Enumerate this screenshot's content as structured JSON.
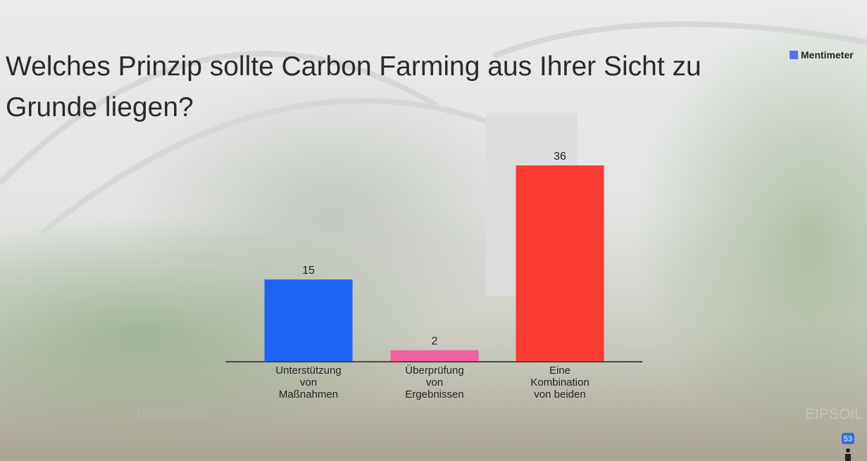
{
  "chart_data": {
    "type": "bar",
    "title": "Welches Prinzip sollte Carbon Farming aus Ihrer Sicht zu Grunde liegen?",
    "categories": [
      "Unterstützung von Maßnahmen",
      "Überprüfung von Ergebnissen",
      "Eine Kombination von beiden"
    ],
    "values": [
      15,
      2,
      36
    ],
    "colors": [
      "#1d63f5",
      "#f45fa0",
      "#fb3a32"
    ]
  },
  "branding": "Mentimeter",
  "footer": {
    "date": "15/06/2023",
    "project": "EIPSOIL"
  },
  "participants": "53"
}
